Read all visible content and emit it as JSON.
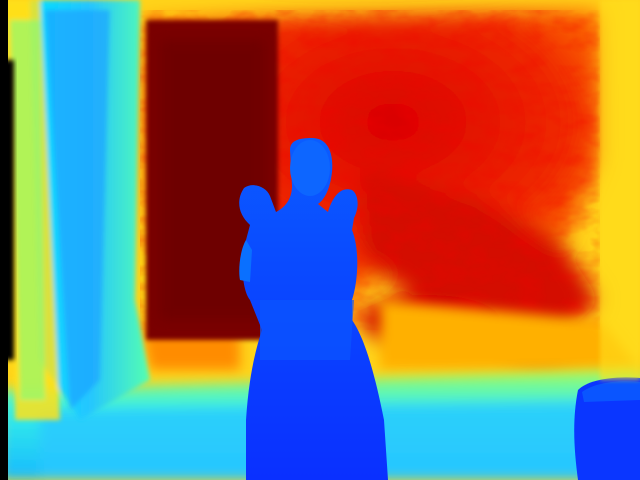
{
  "image": {
    "kind": "depth-map",
    "colormap": "jet",
    "description_free": true,
    "colormap_stops": [
      "#00007f",
      "#0000ff",
      "#0080ff",
      "#00ffff",
      "#80ff80",
      "#ffff00",
      "#ff8000",
      "#ff0000",
      "#7f0000"
    ],
    "colors": {
      "background_edge": "#000000",
      "near_person": "#0a3cff",
      "left_wall": "#2ad8ff",
      "floor": "#33e5ff",
      "far_wall": "#e61a00",
      "doorway": "#7a0000",
      "room_edges": "#ffd21a"
    }
  }
}
